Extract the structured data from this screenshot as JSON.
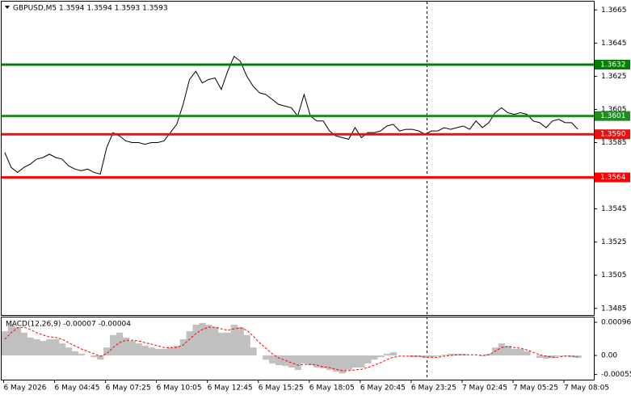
{
  "chart_data": [
    {
      "type": "line",
      "title": "GBPUSD,M5  1.3594 1.3594 1.3593 1.3593",
      "categories": [
        null,
        null,
        null,
        null,
        "6 May 2026",
        null,
        null,
        null,
        null,
        null,
        null,
        null,
        "6 May 04:45",
        null,
        null,
        null,
        null,
        null,
        null,
        null,
        "6 May 07:25",
        null,
        null,
        null,
        null,
        null,
        null,
        null,
        "6 May 10:05",
        null,
        null,
        null,
        null,
        null,
        null,
        null,
        "6 May 12:45",
        null,
        null,
        null,
        null,
        null,
        null,
        null,
        "6 May 15:25",
        null,
        null,
        null,
        null,
        null,
        null,
        null,
        "6 May 18:05",
        null,
        null,
        null,
        null,
        null,
        null,
        null,
        "6 May 20:45",
        null,
        null,
        null,
        null,
        null,
        null,
        null,
        "6 May 23:25",
        null,
        null,
        null,
        null,
        null,
        null,
        null,
        "7 May 02:45",
        null,
        null,
        null,
        null,
        null,
        null,
        null,
        "7 May 05:25",
        null,
        null,
        null,
        null,
        null,
        null,
        null,
        "7 May 08:05"
      ],
      "values": [
        1.3579,
        1.357,
        1.3567,
        1.357,
        1.3572,
        1.3575,
        1.3576,
        1.3578,
        1.3576,
        1.3575,
        1.3571,
        1.3569,
        1.3568,
        1.3569,
        1.3567,
        1.3566,
        1.3582,
        1.3591,
        1.3589,
        1.3586,
        1.3585,
        1.3585,
        1.3584,
        1.3585,
        1.3585,
        1.3586,
        1.3591,
        1.3596,
        1.3608,
        1.3623,
        1.3628,
        1.3621,
        1.3623,
        1.3624,
        1.3617,
        1.3628,
        1.3637,
        1.3634,
        1.3625,
        1.3619,
        1.3615,
        1.3614,
        1.3611,
        1.3608,
        1.3607,
        1.3606,
        1.3601,
        1.3614,
        1.3601,
        1.3598,
        1.3598,
        1.3592,
        1.3589,
        1.3588,
        1.3587,
        1.3594,
        1.3588,
        1.3591,
        1.3591,
        1.3592,
        1.3595,
        1.3596,
        1.3592,
        1.3593,
        1.3593,
        1.3592,
        1.359,
        1.3592,
        1.3592,
        1.3594,
        1.3593,
        1.3594,
        1.3595,
        1.3593,
        1.3598,
        1.3594,
        1.3597,
        1.3603,
        1.3606,
        1.3603,
        1.3602,
        1.3603,
        1.3602,
        1.3598,
        1.3597,
        1.3594,
        1.3598,
        1.3599,
        1.3597,
        1.3597,
        1.3593,
        null,
        null
      ],
      "color": "#000000",
      "ylim": [
        1.3481,
        1.367
      ],
      "yticks": [
        1.3665,
        1.3645,
        1.3625,
        1.3605,
        1.3585,
        1.3545,
        1.3525,
        1.3505,
        1.3485
      ],
      "hlines": [
        1.3632,
        1.3601,
        {
          "value": 1.359,
          "label": "1.3590"
        },
        1.3564
      ],
      "hline_colors": [
        "#008000",
        "#1e8c1e",
        "#e81010",
        "#ff0000"
      ]
    },
    {
      "type": "bar",
      "title": "MACD(12,26,9) -0.00007 -0.00004",
      "values": [
        0.0007,
        0.00089,
        0.00082,
        0.00066,
        0.00052,
        0.00047,
        0.00042,
        0.00047,
        0.00047,
        0.00035,
        0.00023,
        0.00012,
        5e-05,
        0,
        -5e-05,
        -0.00012,
        0.00023,
        0.00059,
        0.00066,
        0.00052,
        0.00042,
        0.00035,
        0.00028,
        0.00023,
        0.00019,
        0.00019,
        0.00023,
        0.00028,
        0.00047,
        0.0007,
        0.00089,
        0.00094,
        0.00089,
        0.00082,
        0.00066,
        0.00066,
        0.00089,
        0.00082,
        0.00059,
        0.00023,
        0,
        -0.00012,
        -0.00023,
        -0.00028,
        -0.0003,
        -0.00035,
        -0.00042,
        -0.00023,
        -0.00028,
        -0.00035,
        -0.00037,
        -0.00042,
        -0.00047,
        -0.00052,
        -0.00042,
        -0.00035,
        -0.00035,
        -0.00023,
        -0.00012,
        -5e-05,
        5e-05,
        9e-05,
        0,
        0,
        -5e-05,
        -5e-05,
        -7e-05,
        -5e-05,
        -2e-05,
        2e-05,
        5e-05,
        5e-05,
        5e-05,
        0,
        0,
        -2e-05,
        5e-05,
        0.00023,
        0.00035,
        0.00028,
        0.00019,
        0.00019,
        0.00012,
        0,
        -7e-05,
        -9e-05,
        -7e-05,
        -2e-05,
        -2e-05,
        -5e-05,
        -7e-05
      ],
      "color": "#c0c0c0",
      "signal_values": [
        0.00047,
        0.00066,
        0.0008,
        0.00082,
        0.00075,
        0.00066,
        0.00059,
        0.00054,
        0.00052,
        0.00047,
        0.00037,
        0.00028,
        0.00019,
        0.00012,
        5e-05,
        -2e-05,
        5e-05,
        0.00023,
        0.00037,
        0.00044,
        0.00044,
        0.00042,
        0.00037,
        0.00033,
        0.00028,
        0.00023,
        0.00023,
        0.00023,
        0.0003,
        0.00047,
        0.00063,
        0.00075,
        0.00082,
        0.00082,
        0.00077,
        0.00073,
        0.00077,
        0.0008,
        0.00073,
        0.00056,
        0.00037,
        0.00021,
        5e-05,
        -7e-05,
        -0.00014,
        -0.00021,
        -0.00028,
        -0.00026,
        -0.00026,
        -0.00028,
        -0.00033,
        -0.00035,
        -0.0004,
        -0.00044,
        -0.00044,
        -0.00042,
        -0.0004,
        -0.00035,
        -0.00028,
        -0.00021,
        -0.00012,
        -5e-05,
        -2e-05,
        -2e-05,
        -2e-05,
        -2e-05,
        -5e-05,
        -5e-05,
        -5e-05,
        -2e-05,
        0,
        2e-05,
        2e-05,
        2e-05,
        2e-05,
        0,
        2e-05,
        0.00012,
        0.00023,
        0.00026,
        0.00023,
        0.00021,
        0.00016,
        9e-05,
        2e-05,
        -2e-05,
        -5e-05,
        -5e-05,
        -2e-05,
        -2e-05,
        -4e-05
      ],
      "signal_color": "#ff0000",
      "ylim": [
        -0.0007,
        0.0011
      ],
      "yticks": [
        0.00096,
        {
          "value": 0,
          "label": "0.00"
        },
        -0.00055
      ]
    }
  ]
}
